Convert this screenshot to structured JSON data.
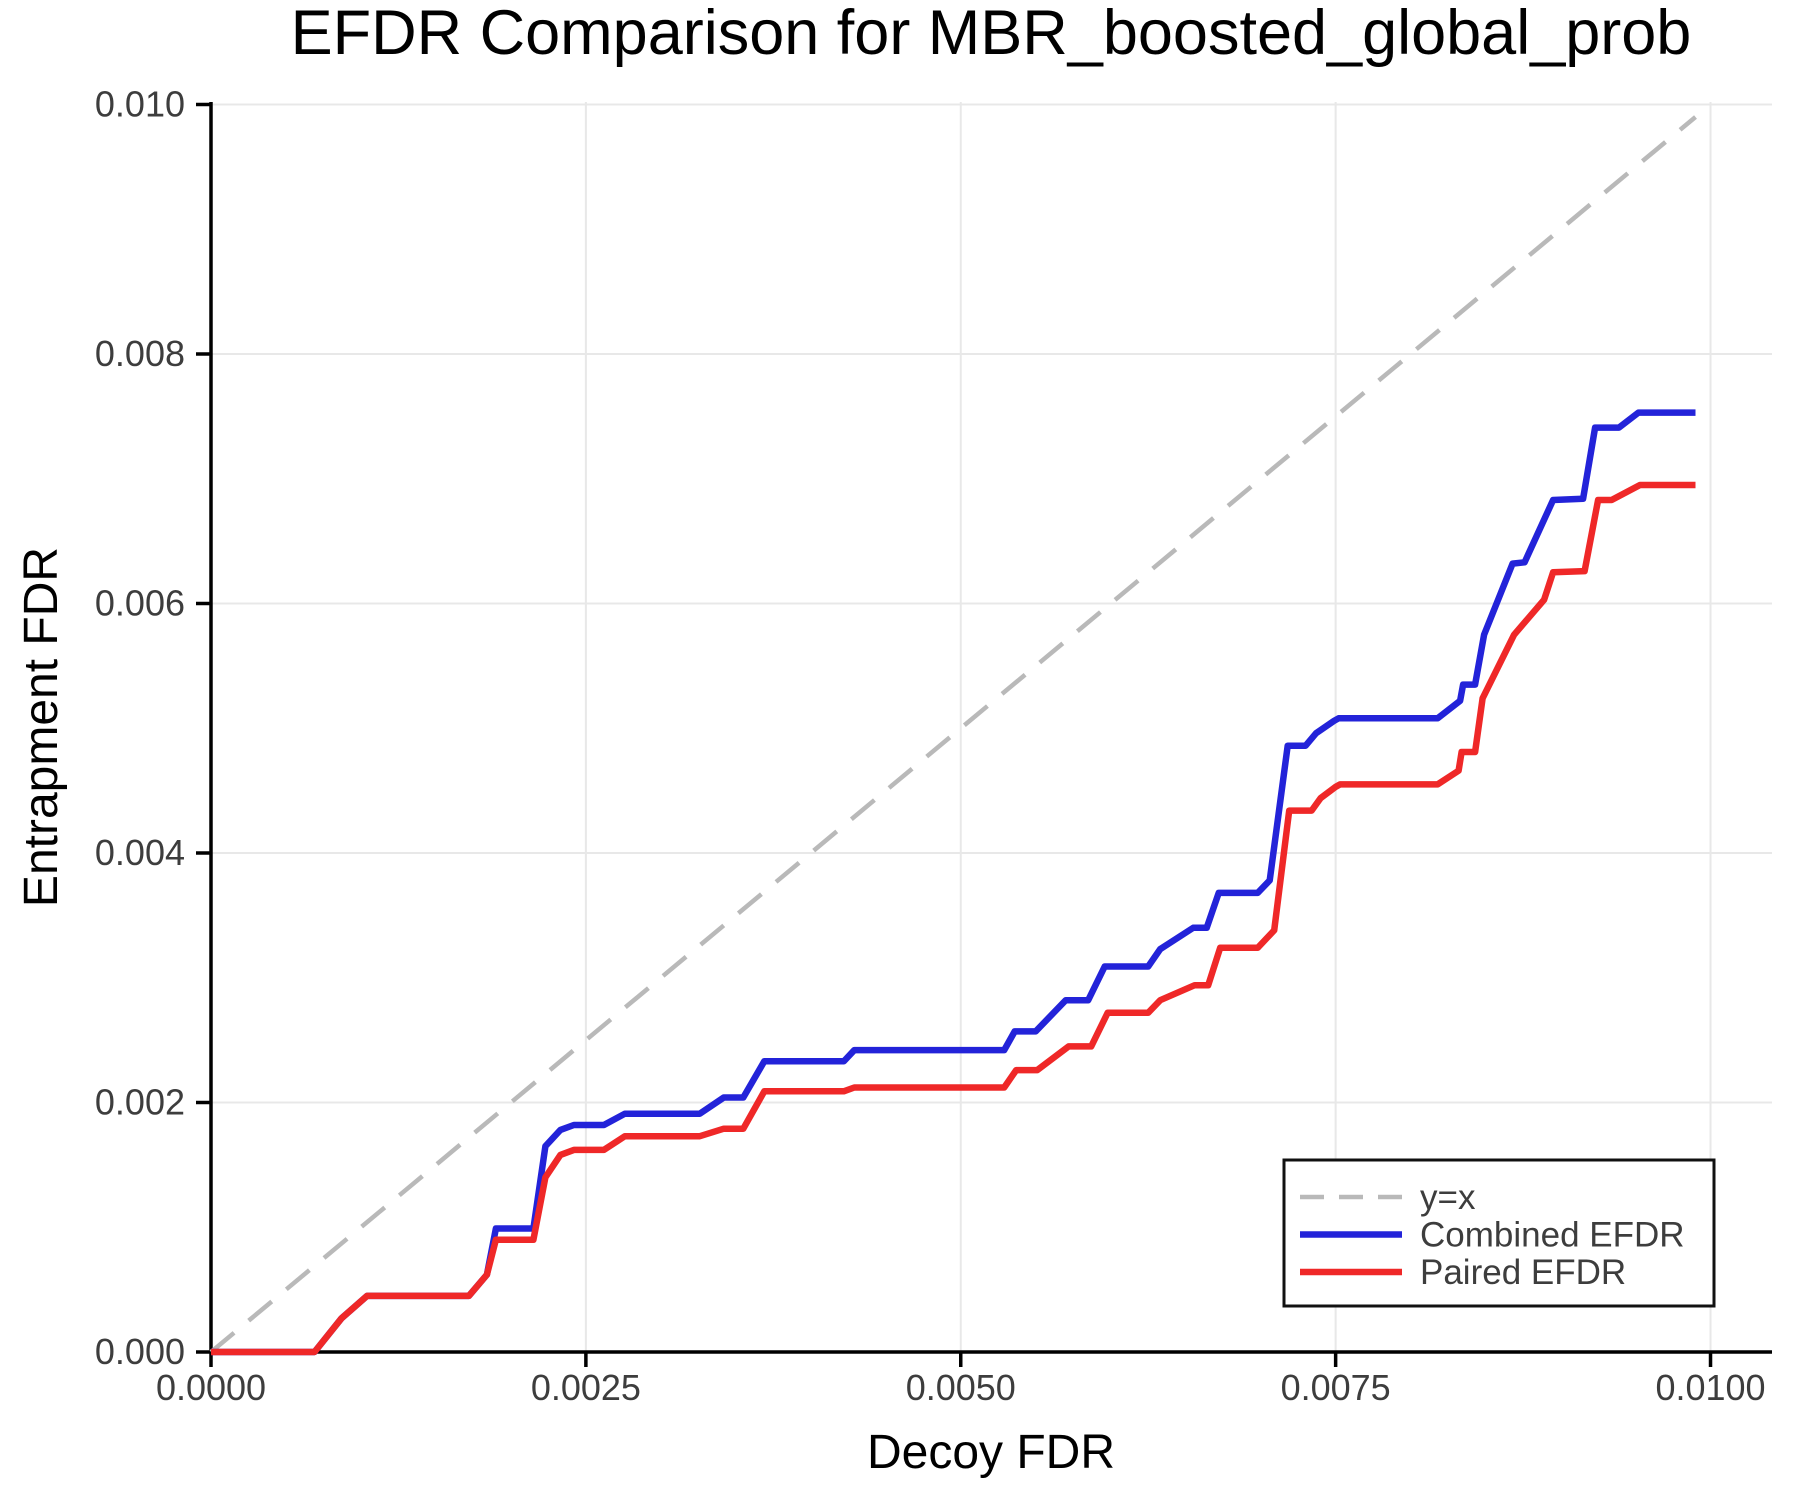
{
  "figure": {
    "background": "#ffffff",
    "text_color": "#3d3d3d",
    "axis_color": "#000000",
    "grid_color": "#e8e8e8"
  },
  "chart_data": {
    "type": "line",
    "title": "EFDR Comparison for MBR_boosted_global_prob",
    "xlabel": "Decoy FDR",
    "ylabel": "Entrapment FDR",
    "xlim": [
      0,
      0.01041
    ],
    "ylim": [
      0,
      0.01002
    ],
    "grid": true,
    "legend_position": "lower-right",
    "x_ticks": [
      {
        "v": 0.0,
        "label": "0.0000"
      },
      {
        "v": 0.0025,
        "label": "0.0025"
      },
      {
        "v": 0.005,
        "label": "0.0050"
      },
      {
        "v": 0.0075,
        "label": "0.0075"
      },
      {
        "v": 0.01,
        "label": "0.0100"
      }
    ],
    "y_ticks": [
      {
        "v": 0.0,
        "label": "0.000"
      },
      {
        "v": 0.002,
        "label": "0.002"
      },
      {
        "v": 0.004,
        "label": "0.004"
      },
      {
        "v": 0.006,
        "label": "0.006"
      },
      {
        "v": 0.008,
        "label": "0.008"
      },
      {
        "v": 0.01,
        "label": "0.010"
      }
    ],
    "series": [
      {
        "name": "y=x",
        "color": "#b9b9b9",
        "width": 4.5,
        "dash": "30 19",
        "points": [
          [
            0.0,
            0.0
          ],
          [
            0.0099,
            0.0099
          ]
        ]
      },
      {
        "name": "Combined EFDR",
        "color": "#2323d9",
        "width": 6.5,
        "dash": null,
        "points": [
          [
            0.0,
            0.0
          ],
          [
            0.00069,
            0.0
          ],
          [
            0.00087,
            0.00027
          ],
          [
            0.00104,
            0.00045
          ],
          [
            0.00172,
            0.00045
          ],
          [
            0.00184,
            0.00062
          ],
          [
            0.0019,
            0.00099
          ],
          [
            0.00215,
            0.00099
          ],
          [
            0.00223,
            0.00165
          ],
          [
            0.00233,
            0.00178
          ],
          [
            0.00242,
            0.00182
          ],
          [
            0.00262,
            0.00182
          ],
          [
            0.00276,
            0.00191
          ],
          [
            0.00326,
            0.00191
          ],
          [
            0.00342,
            0.00204
          ],
          [
            0.00355,
            0.00204
          ],
          [
            0.00369,
            0.00233
          ],
          [
            0.00422,
            0.00233
          ],
          [
            0.00429,
            0.00242
          ],
          [
            0.00529,
            0.00242
          ],
          [
            0.00536,
            0.00257
          ],
          [
            0.0055,
            0.00257
          ],
          [
            0.0057,
            0.00282
          ],
          [
            0.00585,
            0.00282
          ],
          [
            0.00596,
            0.00309
          ],
          [
            0.00625,
            0.00309
          ],
          [
            0.00633,
            0.00323
          ],
          [
            0.00655,
            0.0034
          ],
          [
            0.00664,
            0.0034
          ],
          [
            0.00672,
            0.00368
          ],
          [
            0.00698,
            0.00368
          ],
          [
            0.00706,
            0.00378
          ],
          [
            0.00718,
            0.00486
          ],
          [
            0.0073,
            0.00486
          ],
          [
            0.00737,
            0.00496
          ],
          [
            0.00749,
            0.00506
          ],
          [
            0.00752,
            0.00508
          ],
          [
            0.00818,
            0.00508
          ],
          [
            0.00833,
            0.00522
          ],
          [
            0.00835,
            0.00535
          ],
          [
            0.00843,
            0.00535
          ],
          [
            0.00849,
            0.00575
          ],
          [
            0.00868,
            0.00632
          ],
          [
            0.00876,
            0.00633
          ],
          [
            0.00895,
            0.00683
          ],
          [
            0.00915,
            0.00684
          ],
          [
            0.00923,
            0.00741
          ],
          [
            0.00939,
            0.00741
          ],
          [
            0.00952,
            0.00753
          ],
          [
            0.0099,
            0.00753
          ]
        ]
      },
      {
        "name": "Paired EFDR",
        "color": "#ef2828",
        "width": 6.5,
        "dash": null,
        "points": [
          [
            0.0,
            0.0
          ],
          [
            0.00069,
            0.0
          ],
          [
            0.00087,
            0.00027
          ],
          [
            0.00104,
            0.00045
          ],
          [
            0.00172,
            0.00045
          ],
          [
            0.00184,
            0.00062
          ],
          [
            0.0019,
            0.0009
          ],
          [
            0.00215,
            0.0009
          ],
          [
            0.00223,
            0.0014
          ],
          [
            0.00233,
            0.00158
          ],
          [
            0.00242,
            0.00162
          ],
          [
            0.00262,
            0.00162
          ],
          [
            0.00276,
            0.00173
          ],
          [
            0.00326,
            0.00173
          ],
          [
            0.00342,
            0.00179
          ],
          [
            0.00355,
            0.00179
          ],
          [
            0.00369,
            0.00209
          ],
          [
            0.00422,
            0.00209
          ],
          [
            0.00429,
            0.00212
          ],
          [
            0.00529,
            0.00212
          ],
          [
            0.00537,
            0.00226
          ],
          [
            0.00551,
            0.00226
          ],
          [
            0.00572,
            0.00245
          ],
          [
            0.00587,
            0.00245
          ],
          [
            0.00598,
            0.00272
          ],
          [
            0.00625,
            0.00272
          ],
          [
            0.00633,
            0.00282
          ],
          [
            0.00656,
            0.00294
          ],
          [
            0.00665,
            0.00294
          ],
          [
            0.00673,
            0.00324
          ],
          [
            0.00698,
            0.00324
          ],
          [
            0.00709,
            0.00338
          ],
          [
            0.00719,
            0.00434
          ],
          [
            0.00734,
            0.00434
          ],
          [
            0.0074,
            0.00444
          ],
          [
            0.0075,
            0.00453
          ],
          [
            0.00753,
            0.00455
          ],
          [
            0.00818,
            0.00455
          ],
          [
            0.00832,
            0.00466
          ],
          [
            0.00834,
            0.00481
          ],
          [
            0.00843,
            0.00481
          ],
          [
            0.00848,
            0.00524
          ],
          [
            0.00869,
            0.00575
          ],
          [
            0.00889,
            0.00603
          ],
          [
            0.00895,
            0.00625
          ],
          [
            0.00916,
            0.00626
          ],
          [
            0.00925,
            0.00683
          ],
          [
            0.00934,
            0.00683
          ],
          [
            0.00953,
            0.00695
          ],
          [
            0.0099,
            0.00695
          ]
        ]
      }
    ],
    "legend": {
      "entries": [
        "y=x",
        "Combined EFDR",
        "Paired EFDR"
      ],
      "border_color": "#111111",
      "background": "#ffffff"
    }
  }
}
